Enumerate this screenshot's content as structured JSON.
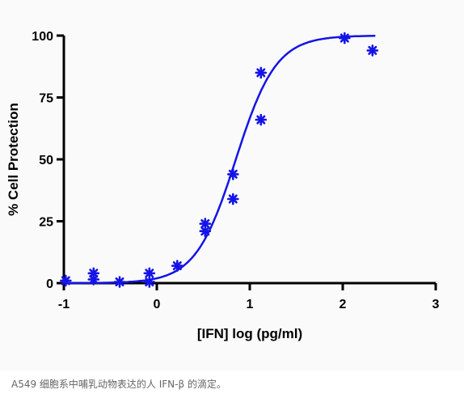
{
  "caption": "A549 细胞系中哺乳动物表达的人 IFN-β 的滴定。",
  "chart_data": {
    "type": "scatter",
    "title": "",
    "xlabel": "[IFN] log (pg/ml)",
    "ylabel": "% Cell Protection",
    "xlim": [
      -1,
      3
    ],
    "ylim": [
      0,
      100
    ],
    "x_ticks": [
      "-1",
      "0",
      "1",
      "2",
      "3"
    ],
    "y_ticks": [
      "0",
      "25",
      "50",
      "75",
      "100"
    ],
    "grid": false,
    "series": [
      {
        "type": "scatter",
        "color": "#1414e6",
        "marker": "asterisk",
        "points": [
          {
            "x": -0.98,
            "y": 1
          },
          {
            "x": -0.68,
            "y": 4
          },
          {
            "x": -0.68,
            "y": 1.5
          },
          {
            "x": -0.4,
            "y": 0.5
          },
          {
            "x": -0.08,
            "y": 4
          },
          {
            "x": -0.08,
            "y": 0.5
          },
          {
            "x": 0.22,
            "y": 7
          },
          {
            "x": 0.52,
            "y": 24
          },
          {
            "x": 0.52,
            "y": 21
          },
          {
            "x": 0.82,
            "y": 44
          },
          {
            "x": 0.82,
            "y": 34
          },
          {
            "x": 1.12,
            "y": 85
          },
          {
            "x": 1.12,
            "y": 66
          },
          {
            "x": 2.02,
            "y": 99
          },
          {
            "x": 2.32,
            "y": 94
          }
        ]
      },
      {
        "type": "line",
        "color": "#1414e6",
        "fit": "sigmoid",
        "bottom": 0,
        "top": 100,
        "logEC50": 0.85,
        "hill": 2.0,
        "x_range": [
          -1,
          2.35
        ]
      }
    ]
  }
}
